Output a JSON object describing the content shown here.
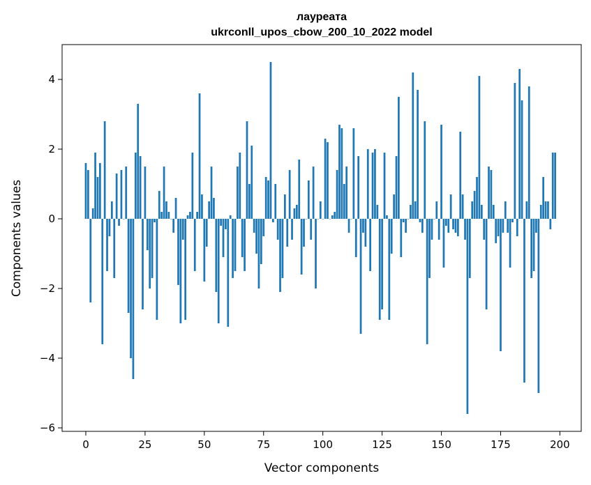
{
  "chart_data": {
    "type": "bar",
    "title_line1": "лауреата",
    "title_line2": "ukrconll_upos_cbow_200_10_2022 model",
    "xlabel": "Vector components",
    "ylabel": "Components values",
    "xlim": [
      -10,
      209
    ],
    "ylim": [
      -6.1,
      5.0
    ],
    "x_ticks": [
      0,
      25,
      50,
      75,
      100,
      125,
      150,
      175,
      200
    ],
    "x_tick_labels": [
      "0",
      "25",
      "50",
      "75",
      "100",
      "125",
      "150",
      "175",
      "200"
    ],
    "y_ticks": [
      -6,
      -4,
      -2,
      0,
      2,
      4
    ],
    "y_tick_labels": [
      "−6",
      "−4",
      "−2",
      "0",
      "2",
      "4"
    ],
    "bar_color": "#1f77b4",
    "grid": false,
    "values": [
      1.6,
      1.4,
      -2.4,
      0.3,
      1.9,
      1.2,
      1.6,
      -3.6,
      2.8,
      -1.5,
      -0.5,
      0.5,
      -1.7,
      1.3,
      -0.2,
      1.4,
      0.0,
      1.5,
      -2.7,
      -4.0,
      -4.6,
      1.9,
      3.3,
      1.8,
      -2.6,
      1.5,
      -0.9,
      -2.0,
      -1.7,
      -0.1,
      -2.9,
      0.8,
      0.2,
      1.5,
      0.5,
      0.2,
      0.0,
      -0.4,
      0.6,
      -1.9,
      -3.0,
      -0.6,
      -2.9,
      0.1,
      0.2,
      1.9,
      -1.5,
      0.2,
      3.6,
      0.7,
      -1.8,
      -0.8,
      0.5,
      1.5,
      0.6,
      -2.1,
      -3.0,
      -0.2,
      -1.1,
      -0.3,
      -3.1,
      0.1,
      -1.7,
      -1.5,
      1.5,
      1.9,
      -1.1,
      -1.5,
      2.8,
      1.0,
      2.1,
      -0.4,
      -1.0,
      -2.0,
      -1.3,
      -0.5,
      1.2,
      1.1,
      4.5,
      -0.1,
      1.0,
      -0.6,
      -2.1,
      -1.7,
      0.7,
      -0.8,
      1.4,
      -0.6,
      0.3,
      0.4,
      1.7,
      -1.6,
      -0.8,
      0.0,
      1.1,
      -0.6,
      1.5,
      -2.0,
      0.0,
      0.5,
      0.0,
      2.3,
      2.2,
      0.0,
      0.1,
      0.2,
      1.4,
      2.7,
      2.6,
      1.0,
      1.5,
      -0.4,
      0.0,
      2.6,
      -1.1,
      1.8,
      -3.3,
      -0.4,
      -0.8,
      2.0,
      -1.5,
      1.9,
      2.0,
      0.4,
      -2.9,
      -2.6,
      1.9,
      0.1,
      -2.9,
      -1.0,
      0.7,
      1.8,
      3.5,
      -1.1,
      -0.1,
      -0.4,
      0.0,
      0.4,
      4.2,
      0.5,
      3.7,
      -0.1,
      -0.4,
      2.8,
      -3.6,
      -1.7,
      -0.6,
      0.0,
      0.5,
      -0.6,
      2.7,
      -1.4,
      -0.2,
      -0.4,
      0.7,
      -0.3,
      -0.4,
      -0.5,
      2.5,
      0.7,
      -0.6,
      -5.6,
      -1.7,
      0.5,
      0.8,
      1.2,
      4.1,
      0.4,
      -0.6,
      -2.6,
      1.5,
      1.4,
      0.4,
      -0.7,
      -0.5,
      -3.8,
      -0.4,
      0.5,
      -0.4,
      -1.4,
      -0.1,
      3.9,
      -0.5,
      4.3,
      3.4,
      -4.7,
      0.5,
      3.8,
      -1.7,
      -1.5,
      -0.4,
      -5.0,
      0.4,
      1.2,
      0.5,
      0.5,
      -0.3,
      1.9,
      1.9
    ]
  }
}
